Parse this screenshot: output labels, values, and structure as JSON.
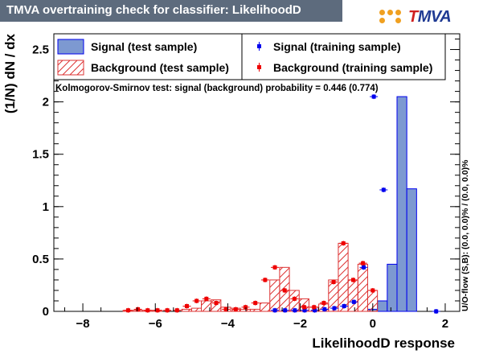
{
  "title": "TMVA overtraining check for classifier: LikelihoodD",
  "logo": {
    "t": "T",
    "rest": "MVA"
  },
  "colors": {
    "signal_fill": "#7d99d1",
    "signal_line": "#0000ee",
    "background_hatch": "#dd3333",
    "background_marker": "#ee0000",
    "title_bg": "#5d6b7d"
  },
  "chart_data": {
    "type": "bar",
    "xlabel": "LikelihoodD response",
    "ylabel": "(1/N) dN / dx",
    "right_label": "U/O-flow (S,B): (0.0, 0.0)% / (0.0, 0.0)%",
    "ks_text": "Kolmogorov-Smirnov test: signal (background) probability = 0.446 (0.774)",
    "xlim": [
      -8.8,
      2.4
    ],
    "ylim": [
      0,
      2.65
    ],
    "xticks": [
      -8,
      -6,
      -4,
      -2,
      0,
      2
    ],
    "yticks": [
      0,
      0.5,
      1,
      1.5,
      2,
      2.5
    ],
    "bin_start": -6.89,
    "bin_width": 0.27,
    "legend": [
      {
        "label": "Signal (test sample)",
        "style": "signal-fill"
      },
      {
        "label": "Signal (training sample)",
        "style": "signal-marker"
      },
      {
        "label": "Background (test sample)",
        "style": "background-hatch"
      },
      {
        "label": "Background (training sample)",
        "style": "background-marker"
      }
    ],
    "series": [
      {
        "name": "Signal (test sample)",
        "values": [
          0,
          0,
          0,
          0,
          0,
          0,
          0,
          0,
          0,
          0,
          0,
          0,
          0,
          0,
          0,
          0,
          0,
          0,
          0,
          0,
          0,
          0,
          0,
          0,
          0,
          0.02,
          0.1,
          0.45,
          2.05,
          1.17,
          0
        ]
      },
      {
        "name": "Background (test sample)",
        "values": [
          0.01,
          0.01,
          0.01,
          0.01,
          0,
          0,
          0.02,
          0.03,
          0.1,
          0.11,
          0.04,
          0.03,
          0.02,
          0.02,
          0.08,
          0.3,
          0.42,
          0.2,
          0.12,
          0.04,
          0.07,
          0.3,
          0.65,
          0.3,
          0.45,
          0.2,
          0,
          0,
          0,
          0,
          0
        ]
      },
      {
        "name": "Signal (training sample)",
        "points": [
          [
            -2.7,
            0.01
          ],
          [
            -2.42,
            0.01
          ],
          [
            -2.15,
            0.01
          ],
          [
            -1.88,
            0.01
          ],
          [
            -1.6,
            0.01
          ],
          [
            -1.33,
            0.02
          ],
          [
            -1.06,
            0.03
          ],
          [
            -0.79,
            0.05
          ],
          [
            -0.52,
            0.09
          ],
          [
            -0.25,
            0.42
          ],
          [
            0.03,
            2.05
          ],
          [
            0.3,
            1.16
          ],
          [
            1.75,
            0.0
          ]
        ]
      },
      {
        "name": "Background (training sample)",
        "points": [
          [
            -6.75,
            0.01
          ],
          [
            -6.48,
            0.02
          ],
          [
            -6.21,
            0.01
          ],
          [
            -5.94,
            0.01
          ],
          [
            -5.67,
            0.01
          ],
          [
            -5.4,
            0.01
          ],
          [
            -5.13,
            0.05
          ],
          [
            -4.86,
            0.1
          ],
          [
            -4.59,
            0.12
          ],
          [
            -4.32,
            0.08
          ],
          [
            -4.05,
            0.02
          ],
          [
            -3.78,
            0.02
          ],
          [
            -3.51,
            0.04
          ],
          [
            -3.24,
            0.08
          ],
          [
            -2.97,
            0.3
          ],
          [
            -2.7,
            0.42
          ],
          [
            -2.43,
            0.2
          ],
          [
            -2.16,
            0.12
          ],
          [
            -1.89,
            0.04
          ],
          [
            -1.62,
            0.04
          ],
          [
            -1.35,
            0.08
          ],
          [
            -1.08,
            0.28
          ],
          [
            -0.81,
            0.65
          ],
          [
            -0.54,
            0.3
          ],
          [
            -0.27,
            0.46
          ],
          [
            0.0,
            0.2
          ]
        ]
      }
    ]
  }
}
